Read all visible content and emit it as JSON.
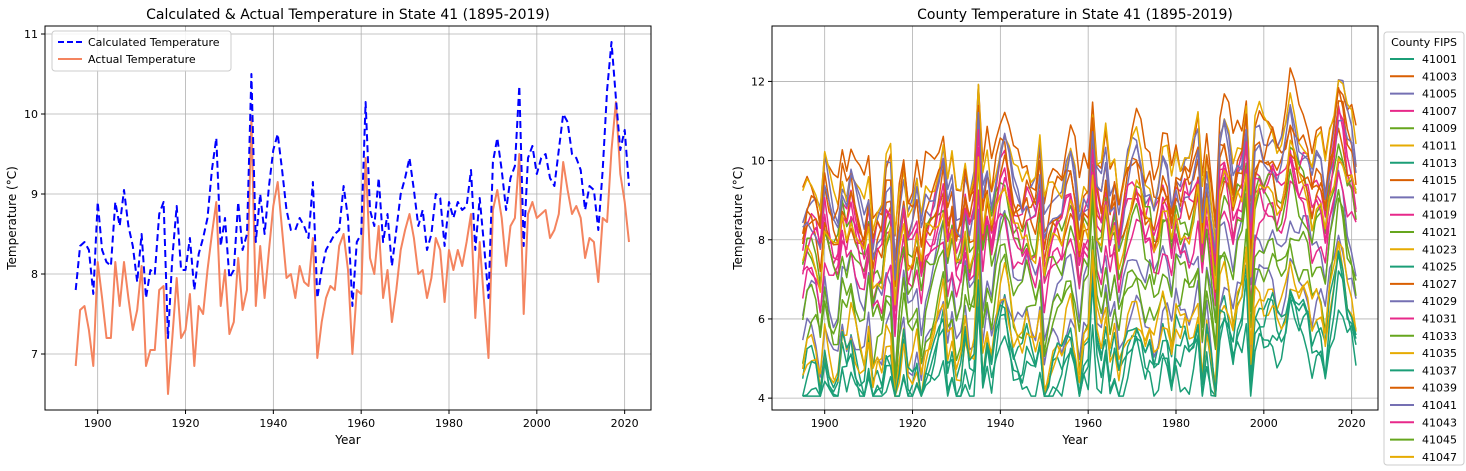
{
  "colors": {
    "calculated": "#0000ff",
    "actual": "#f4845f",
    "county_palette": [
      "#1b9e77",
      "#d95f02",
      "#7570b3",
      "#e7298a",
      "#66a61e",
      "#e6ab02"
    ]
  },
  "chart_data": [
    {
      "type": "line",
      "title": "Calculated & Actual Temperature in State 41 (1895-2019)",
      "xlabel": "Year",
      "ylabel": "Temperature (°C)",
      "xlim": [
        1888,
        2026
      ],
      "ylim": [
        6.3,
        11.1
      ],
      "xticks": [
        1900,
        1920,
        1940,
        1960,
        1980,
        2000,
        2020
      ],
      "yticks": [
        7,
        8,
        9,
        10,
        11
      ],
      "grid": true,
      "legend_position": "top-left",
      "x_start": 1895,
      "series": [
        {
          "name": "Calculated Temperature",
          "style": "dashed",
          "values": [
            7.8,
            8.35,
            8.4,
            8.3,
            7.75,
            8.9,
            8.3,
            8.15,
            8.1,
            8.9,
            8.6,
            9.05,
            8.6,
            8.35,
            7.9,
            8.5,
            7.7,
            8.05,
            8,
            8.75,
            8.9,
            7.2,
            8.2,
            8.85,
            8.05,
            8.05,
            8.45,
            7.8,
            8.25,
            8.45,
            8.7,
            9.3,
            9.7,
            8.35,
            8.7,
            7.95,
            8.05,
            8.9,
            8.3,
            8.5,
            10.5,
            8.4,
            9,
            8.5,
            9.1,
            9.55,
            9.75,
            9.3,
            8.8,
            8.55,
            8.55,
            8.7,
            8.6,
            8.45,
            9.15,
            7.7,
            8.05,
            8.3,
            8.4,
            8.5,
            8.55,
            9.1,
            8.7,
            7.6,
            8.4,
            8.5,
            10.15,
            8.8,
            8.6,
            9.2,
            8.4,
            8.75,
            8.1,
            8.55,
            9,
            9.2,
            9.45,
            9.05,
            8.6,
            8.8,
            8.3,
            8.5,
            9,
            8.95,
            8.35,
            8.9,
            8.7,
            8.9,
            8.8,
            8.85,
            9.3,
            8.3,
            8.95,
            8.35,
            7.7,
            9.4,
            9.7,
            9.3,
            8.8,
            9.2,
            9.35,
            10.35,
            8.35,
            9.45,
            9.6,
            9.25,
            9.45,
            9.5,
            9.2,
            9.1,
            9.55,
            10,
            9.9,
            9.5,
            9.45,
            9.3,
            8.8,
            9.1,
            9.05,
            8.55,
            9.3,
            10.3,
            10.9,
            10.2,
            9.55,
            9.8,
            9.1
          ]
        },
        {
          "name": "Actual Temperature",
          "style": "solid",
          "values": [
            6.85,
            7.55,
            7.6,
            7.3,
            6.85,
            8.15,
            7.7,
            7.2,
            7.2,
            8.15,
            7.6,
            8.15,
            7.7,
            7.3,
            7.55,
            8.1,
            6.85,
            7.05,
            7.05,
            7.8,
            7.85,
            6.5,
            7.2,
            7.95,
            7.2,
            7.3,
            7.75,
            6.85,
            7.6,
            7.5,
            8.05,
            8.5,
            8.9,
            7.6,
            8.05,
            7.25,
            7.4,
            8.2,
            7.55,
            7.8,
            9.95,
            7.6,
            8.35,
            7.7,
            8.3,
            8.85,
            9.15,
            8.55,
            7.95,
            8,
            7.7,
            8.1,
            7.9,
            7.85,
            8.45,
            6.95,
            7.4,
            7.7,
            7.85,
            7.8,
            8.35,
            8.5,
            8.05,
            7,
            7.8,
            7.75,
            9.45,
            8.2,
            8,
            8.6,
            7.7,
            8.05,
            7.4,
            7.8,
            8.3,
            8.55,
            8.75,
            8.45,
            8,
            8.05,
            7.7,
            7.95,
            8.45,
            8.3,
            7.65,
            8.3,
            8.05,
            8.3,
            8.1,
            8.4,
            8.75,
            7.45,
            8.4,
            7.65,
            6.95,
            8.8,
            9.05,
            8.7,
            8.1,
            8.6,
            8.7,
            9.5,
            7.5,
            8.75,
            8.9,
            8.7,
            8.75,
            8.8,
            8.45,
            8.55,
            8.75,
            9.4,
            9.05,
            8.75,
            8.85,
            8.7,
            8.2,
            8.45,
            8.4,
            7.9,
            8.7,
            8.65,
            9.55,
            10.15,
            9.25,
            8.9,
            8.4
          ]
        }
      ]
    },
    {
      "type": "line",
      "title": "County Temperature in State 41 (1895-2019)",
      "xlabel": "Year",
      "ylabel": "Temperature (°C)",
      "xlim": [
        1888,
        2026
      ],
      "ylim": [
        3.7,
        13.4
      ],
      "xticks": [
        1900,
        1920,
        1940,
        1960,
        1980,
        2000,
        2020
      ],
      "yticks": [
        4,
        6,
        8,
        10,
        12
      ],
      "grid": true,
      "legend_title": "County FIPS",
      "legend_position": "outside-right",
      "x_start": 1895,
      "base_profile": [
        0,
        0.4,
        0.45,
        0.3,
        -0.15,
        0.85,
        0.4,
        0.1,
        0.1,
        0.85,
        0.55,
        0.95,
        0.55,
        0.25,
        0.05,
        0.65,
        -0.3,
        0.05,
        0,
        0.75,
        0.8,
        -0.95,
        0.2,
        0.85,
        0.05,
        0.15,
        0.55,
        -0.25,
        0.4,
        0.5,
        0.7,
        1.05,
        1.4,
        0.4,
        0.75,
        0,
        0.15,
        0.9,
        0.3,
        0.55,
        2.25,
        0.4,
        1,
        0.45,
        1.05,
        1.5,
        1.7,
        1.25,
        0.7,
        0.65,
        0.5,
        0.85,
        0.6,
        0.5,
        1.1,
        -0.25,
        0.15,
        0.45,
        0.55,
        0.5,
        0.95,
        1.2,
        0.75,
        -0.1,
        0.6,
        0.6,
        2.15,
        0.9,
        0.65,
        1.25,
        0.45,
        0.8,
        0.1,
        0.55,
        1,
        1.25,
        1.4,
        1.1,
        0.65,
        0.8,
        0.4,
        0.65,
        1.15,
        1,
        0.4,
        1.05,
        0.8,
        1.05,
        0.85,
        1.1,
        1.5,
        0.15,
        1.1,
        0.4,
        -0.4,
        1.55,
        1.8,
        1.45,
        0.85,
        1.35,
        1.45,
        2.25,
        0.2,
        1.5,
        1.65,
        1.45,
        1.55,
        1.6,
        1.25,
        1.3,
        1.6,
        2.15,
        1.85,
        1.55,
        1.6,
        1.45,
        0.95,
        1.25,
        1.2,
        0.65,
        1.45,
        1.9,
        2.6,
        2.35,
        1.75,
        1.6,
        1.1
      ],
      "series": [
        {
          "name": "41001",
          "offset": 5.3,
          "color": "#1b9e77"
        },
        {
          "name": "41003",
          "offset": 10.2,
          "color": "#d95f02"
        },
        {
          "name": "41005",
          "offset": 9.6,
          "color": "#7570b3"
        },
        {
          "name": "41007",
          "offset": 8.9,
          "color": "#e7298a"
        },
        {
          "name": "41009",
          "offset": 8.5,
          "color": "#66a61e"
        },
        {
          "name": "41011",
          "offset": 9.9,
          "color": "#e6ab02"
        },
        {
          "name": "41013",
          "offset": 5.0,
          "color": "#1b9e77"
        },
        {
          "name": "41015",
          "offset": 9.4,
          "color": "#d95f02"
        },
        {
          "name": "41017",
          "offset": 6.0,
          "color": "#7570b3"
        },
        {
          "name": "41019",
          "offset": 8.2,
          "color": "#e7298a"
        },
        {
          "name": "41021",
          "offset": 6.4,
          "color": "#66a61e"
        },
        {
          "name": "41023",
          "offset": 5.6,
          "color": "#e6ab02"
        },
        {
          "name": "41025",
          "offset": 4.6,
          "color": "#1b9e77"
        },
        {
          "name": "41027",
          "offset": 9.1,
          "color": "#d95f02"
        },
        {
          "name": "41029",
          "offset": 7.3,
          "color": "#7570b3"
        },
        {
          "name": "41031",
          "offset": 7.7,
          "color": "#e7298a"
        },
        {
          "name": "41033",
          "offset": 8.0,
          "color": "#66a61e"
        },
        {
          "name": "41035",
          "offset": 5.8,
          "color": "#e6ab02"
        },
        {
          "name": "41037",
          "offset": 5.2,
          "color": "#1b9e77"
        },
        {
          "name": "41039",
          "offset": 8.7,
          "color": "#d95f02"
        },
        {
          "name": "41041",
          "offset": 9.3,
          "color": "#7570b3"
        },
        {
          "name": "41043",
          "offset": 8.6,
          "color": "#e7298a"
        },
        {
          "name": "41045",
          "offset": 6.9,
          "color": "#66a61e"
        },
        {
          "name": "41047",
          "offset": 8.4,
          "color": "#e6ab02"
        }
      ]
    }
  ]
}
